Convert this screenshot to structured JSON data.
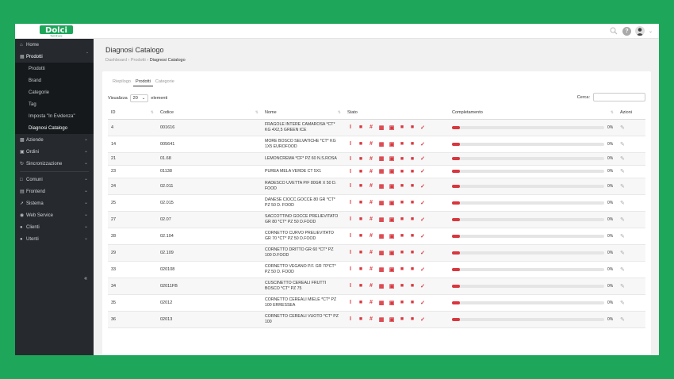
{
  "brand": {
    "name": "Dolci",
    "tagline": "forniture",
    "color": "#1ea65a"
  },
  "topbar": {
    "icons": [
      "zoom-icon",
      "help-icon",
      "avatar",
      "chevron-down-icon"
    ]
  },
  "sidebar": {
    "items": [
      {
        "label": "Home",
        "icon": "home-icon"
      },
      {
        "label": "Prodotti",
        "icon": "box-icon",
        "open": true,
        "children": [
          {
            "label": "Prodotti"
          },
          {
            "label": "Brand"
          },
          {
            "label": "Categorie"
          },
          {
            "label": "Tag"
          },
          {
            "label": "Imposta \"In Evidenza\""
          },
          {
            "label": "Diagnosi Catalogo"
          }
        ]
      },
      {
        "label": "Aziende",
        "icon": "building-icon"
      },
      {
        "label": "Ordini",
        "icon": "cart-icon"
      },
      {
        "label": "Sincronizzazione",
        "icon": "sync-icon"
      },
      {
        "label": "Comuni",
        "icon": "bank-icon"
      },
      {
        "label": "Frontend",
        "icon": "monitor-icon"
      },
      {
        "label": "Sistema",
        "icon": "wrench-icon"
      },
      {
        "label": "Web Service",
        "icon": "plug-icon"
      },
      {
        "label": "Clienti",
        "icon": "user-icon"
      },
      {
        "label": "Utenti",
        "icon": "users-icon"
      }
    ]
  },
  "page": {
    "title": "Diagnosi Catalogo",
    "breadcrumb": [
      "Dashboard",
      "Prodotti",
      "Diagnosi Catalogo"
    ],
    "tabs": [
      "Riepilogo",
      "Prodotti",
      "Categorie"
    ],
    "active_tab": "Prodotti",
    "visualizza_label": "Visualizza",
    "page_size": "20",
    "elementi_label": "elementi",
    "cerca_label": "Cerca:",
    "cerca_value": ""
  },
  "table": {
    "headers": [
      "ID",
      "Codice",
      "Nome",
      "Stato",
      "Completamento",
      "Azioni"
    ],
    "rows": [
      {
        "id": "4",
        "codice": "001616",
        "nome": "FRAGOLE INTERE CAMAROSA *CT* KG 4X2,5 GREEN ICE",
        "pct": "0%"
      },
      {
        "id": "14",
        "codice": "005641",
        "nome": "MORE BOSCO SELVATICHE *CT* KG 1X5 EUROFOOD",
        "pct": "0%"
      },
      {
        "id": "21",
        "codice": "01.68",
        "nome": "LEMONCREMA *CF* PZ 60 N.S.ROSA",
        "pct": "0%"
      },
      {
        "id": "23",
        "codice": "01138",
        "nome": "PUREA MELA VERDE CT 5X1",
        "pct": "0%"
      },
      {
        "id": "24",
        "codice": "02.011",
        "nome": "RADESCO UVETTA P/F 80GR X 50 D. FOOD",
        "pct": "0%"
      },
      {
        "id": "25",
        "codice": "02.015",
        "nome": "DANESE CIOCC.GOCCE 80 GR *CT* PZ 50 D. FOOD",
        "pct": "0%"
      },
      {
        "id": "27",
        "codice": "02.07",
        "nome": "SACCOTTINO GOCCE PRELIEVITATO GR 80 *CT* PZ 50 D.FOOD",
        "pct": "0%"
      },
      {
        "id": "28",
        "codice": "02.104",
        "nome": "CORNETTO CURVO PRELIEVITATO GR 70 *CT* PZ 50 D.FOOD",
        "pct": "0%"
      },
      {
        "id": "29",
        "codice": "02.109",
        "nome": "CORNETTO DRITTO GR 60 *CT* PZ 100 D.FOOD",
        "pct": "0%"
      },
      {
        "id": "33",
        "codice": "020108",
        "nome": "CORNETTO VEGANO P.F. GR 70*CT* PZ 50 D. FOOD",
        "pct": "0%"
      },
      {
        "id": "34",
        "codice": "02011FB",
        "nome": "CUSCINETTO CEREALI FRUTTI BOSCO *CT* PZ 75",
        "pct": "0%"
      },
      {
        "id": "35",
        "codice": "02012",
        "nome": "CORNETTO CEREALI MIELE *CT* PZ 100 ERRESSEA",
        "pct": "0%"
      },
      {
        "id": "36",
        "codice": "02013",
        "nome": "CORNETTO CEREALI VUOTO *CT* PZ 100",
        "pct": "0%"
      }
    ],
    "progress_fraction": 0.05,
    "status_icons": [
      "cursor-icon",
      "factory-icon",
      "hash-icon",
      "boxes-icon",
      "image-icon",
      "pdf-icon",
      "document-icon",
      "check-icon"
    ],
    "status_color": "#d9363e"
  }
}
